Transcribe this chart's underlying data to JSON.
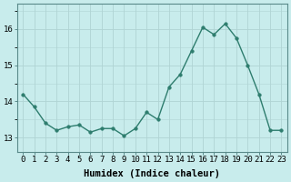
{
  "x": [
    0,
    1,
    2,
    3,
    4,
    5,
    6,
    7,
    8,
    9,
    10,
    11,
    12,
    13,
    14,
    15,
    16,
    17,
    18,
    19,
    20,
    21,
    22,
    23
  ],
  "y": [
    14.2,
    13.85,
    13.4,
    13.2,
    13.3,
    13.35,
    13.15,
    13.25,
    13.25,
    13.05,
    13.25,
    13.7,
    13.5,
    14.4,
    14.75,
    15.4,
    16.05,
    15.85,
    16.15,
    15.75,
    15.0,
    14.2,
    13.2,
    13.2
  ],
  "line_color": "#2e7d6e",
  "marker": "o",
  "markersize": 2.5,
  "linewidth": 1.0,
  "bg_color": "#c8ecec",
  "grid_color": "#b0d4d4",
  "xlabel": "Humidex (Indice chaleur)",
  "xlabel_fontsize": 7.5,
  "tick_fontsize": 6.5,
  "yticks": [
    13,
    14,
    15,
    16
  ],
  "ylim": [
    12.6,
    16.7
  ],
  "xlim": [
    -0.5,
    23.5
  ],
  "xticks": [
    0,
    1,
    2,
    3,
    4,
    5,
    6,
    7,
    8,
    9,
    10,
    11,
    12,
    13,
    14,
    15,
    16,
    17,
    18,
    19,
    20,
    21,
    22,
    23
  ]
}
